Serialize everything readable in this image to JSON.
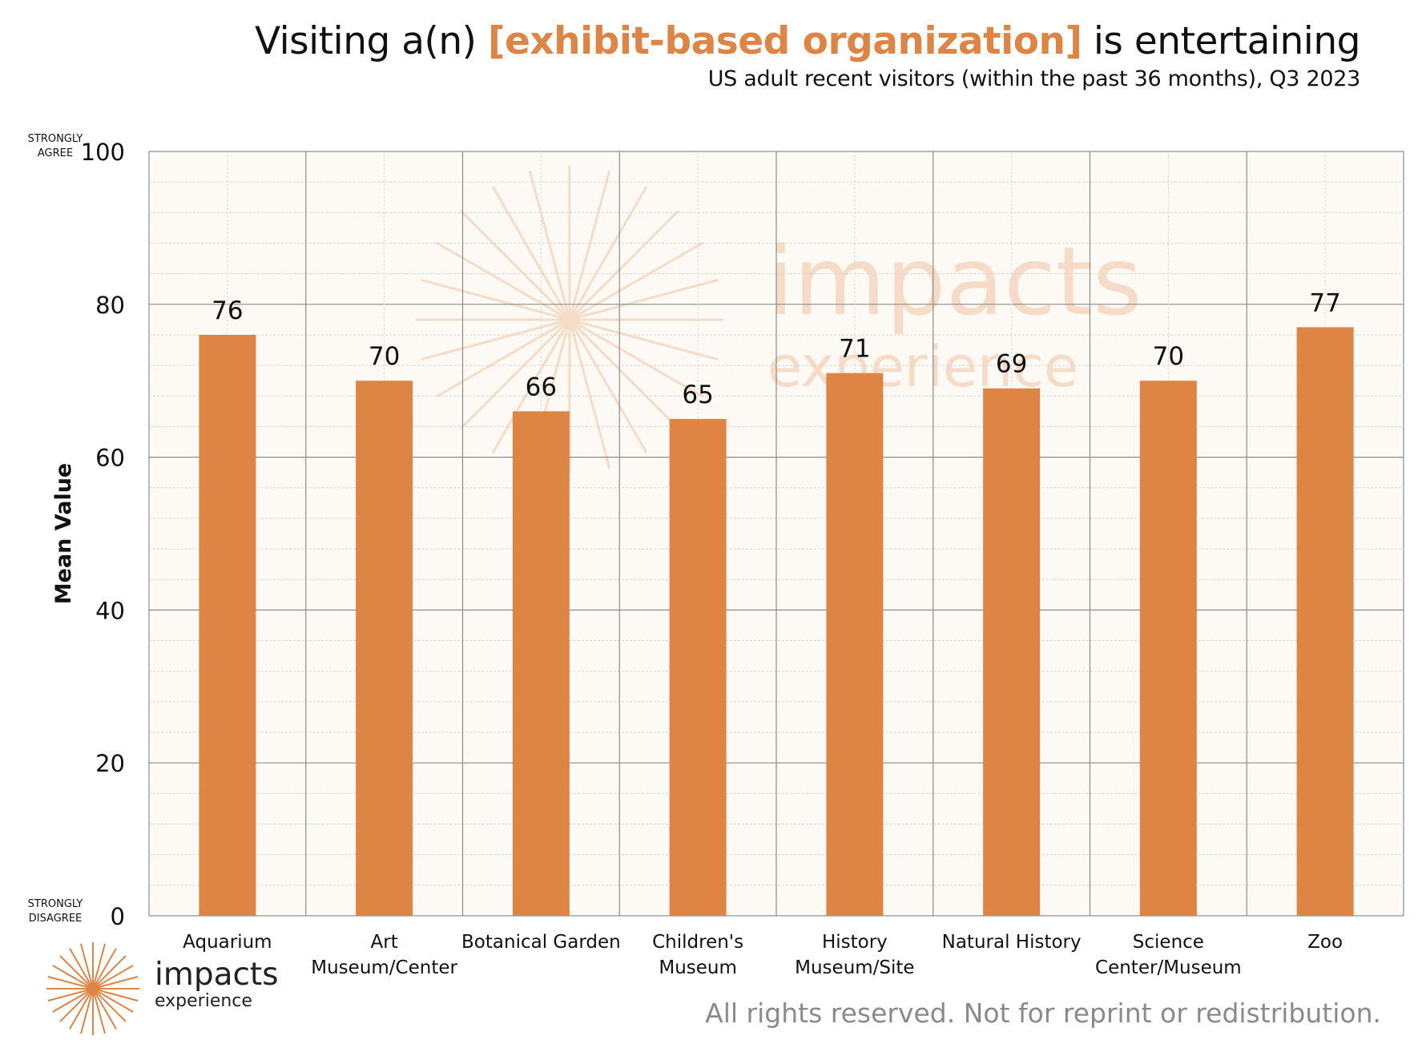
{
  "title": {
    "prefix": "Visiting a(n) ",
    "highlight": "[exhibit-based organization]",
    "suffix": " is entertaining"
  },
  "subtitle": "US adult recent visitors (within the past 36 months), Q3 2023",
  "axis_end_labels": {
    "top": [
      "STRONGLY",
      "AGREE"
    ],
    "bottom": [
      "STRONGLY",
      "DISAGREE"
    ]
  },
  "watermark": {
    "name": "impacts",
    "sub": "experience"
  },
  "logo": {
    "name": "impacts",
    "sub": "experience"
  },
  "rights_notice": "All rights reserved. Not for reprint or redistribution.",
  "colors": {
    "bar": "#de8445",
    "plot_background": "#fdf9f5",
    "highlight": "#de8445",
    "watermark": "#f6dcc6"
  },
  "chart_data": {
    "type": "bar",
    "categories": [
      [
        "Aquarium"
      ],
      [
        "Art",
        "Museum/Center"
      ],
      [
        "Botanical Garden"
      ],
      [
        "Children's",
        "Museum"
      ],
      [
        "History",
        "Museum/Site"
      ],
      [
        "Natural History"
      ],
      [
        "Science",
        "Center/Museum"
      ],
      [
        "Zoo"
      ]
    ],
    "values": [
      76,
      70,
      66,
      65,
      71,
      69,
      70,
      77
    ],
    "data_labels": [
      "76",
      "70",
      "66",
      "65",
      "71",
      "69",
      "70",
      "77"
    ],
    "ylabel": "Mean Value",
    "xlabel": "",
    "ylim": [
      0,
      100
    ],
    "yticks": [
      0,
      20,
      40,
      60,
      80,
      100
    ],
    "grid": true,
    "legend": "none"
  }
}
